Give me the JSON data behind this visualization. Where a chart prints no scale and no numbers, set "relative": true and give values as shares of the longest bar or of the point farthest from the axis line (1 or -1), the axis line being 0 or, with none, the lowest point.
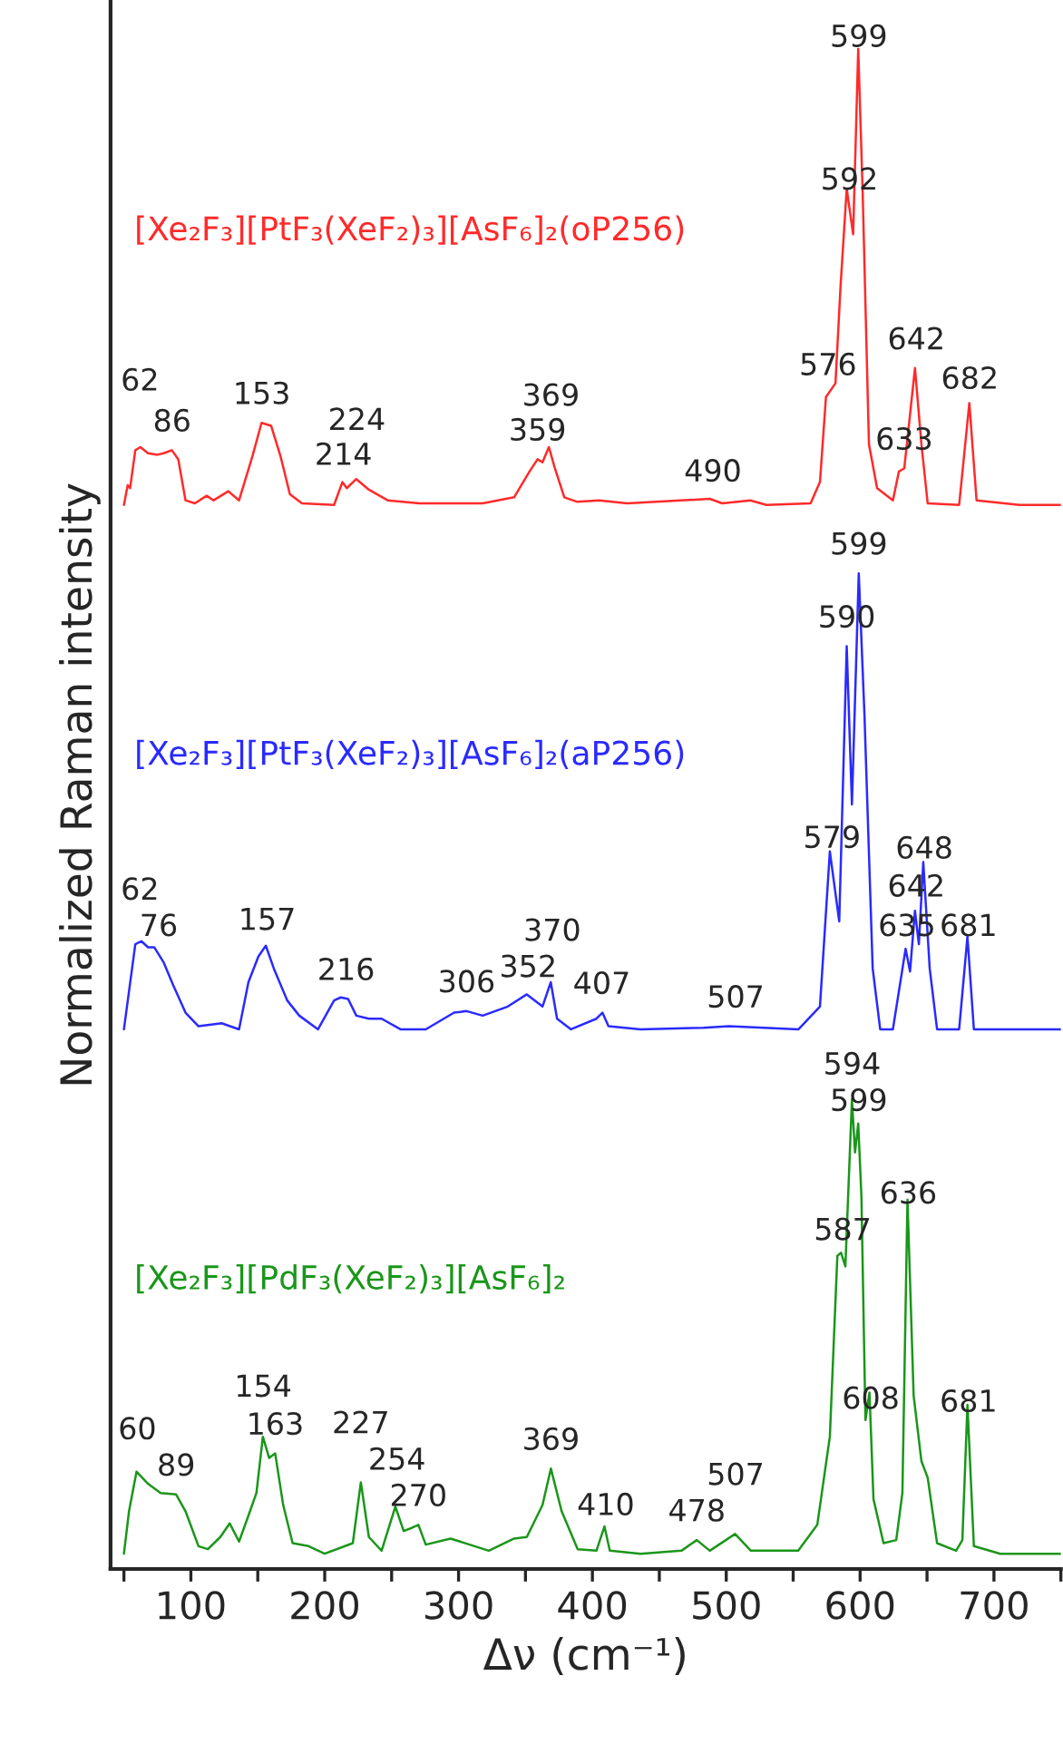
{
  "chart_data": {
    "type": "line",
    "relative": true,
    "xlabel": "Δν (cm⁻¹)",
    "ylabel": "Normalized Raman intensity",
    "xlim": [
      40,
      750
    ],
    "xticks": [
      {
        "value": 50,
        "label": null
      },
      100,
      {
        "value": 150,
        "label": null
      },
      200,
      {
        "value": 250,
        "label": null
      },
      300,
      {
        "value": 350,
        "label": null
      },
      400,
      {
        "value": 450,
        "label": null
      },
      500,
      {
        "value": 550,
        "label": null
      },
      600,
      {
        "value": 650,
        "label": null
      },
      700,
      {
        "value": 750,
        "label": null
      }
    ],
    "series": [
      {
        "name": "[Xe₂F₃][PtF₃(XeF₂)₃][AsF₆]₂(oP256)",
        "color": "#ff2a2a",
        "x": [
          50,
          52.8,
          54.6,
          58.5,
          62.3,
          68,
          75,
          79.7,
          85.8,
          90.6,
          96,
          103,
          111.8,
          117,
          128,
          136,
          146,
          152.8,
          160,
          167,
          174,
          183,
          207,
          213.2,
          216.5,
          223.6,
          233,
          247,
          270.8,
          318,
          341.5,
          353,
          359,
          362.7,
          367.5,
          372,
          379,
          388.7,
          405,
          426,
          487.7,
          497,
          518,
          530,
          563,
          570,
          574.5,
          581.6,
          585.4,
          590,
          594.8,
          598.6,
          601.9,
          606.6,
          612.7,
          624.5,
          629,
          633,
          641,
          645.8,
          650.5,
          674,
          681.6,
          687,
          719,
          750
        ],
        "values": [
          0.7,
          0.713,
          0.711,
          0.736,
          0.738,
          0.734,
          0.733,
          0.734,
          0.736,
          0.73,
          0.703,
          0.701,
          0.706,
          0.703,
          0.709,
          0.703,
          0.732,
          0.754,
          0.752,
          0.732,
          0.707,
          0.701,
          0.7,
          0.715,
          0.711,
          0.717,
          0.71,
          0.703,
          0.701,
          0.701,
          0.705,
          0.722,
          0.73,
          0.728,
          0.738,
          0.724,
          0.705,
          0.702,
          0.703,
          0.701,
          0.704,
          0.701,
          0.703,
          0.7,
          0.701,
          0.715,
          0.771,
          0.78,
          0.844,
          0.908,
          0.878,
          1.0,
          0.906,
          0.74,
          0.711,
          0.703,
          0.722,
          0.724,
          0.79,
          0.74,
          0.701,
          0.7,
          0.767,
          0.703,
          0.7,
          0.7
        ]
      },
      {
        "name": "[Xe₂F₃][PtF₃(XeF₂)₃][AsF₆]₂(aP256)",
        "color": "#2a2aff",
        "x": [
          50,
          58.5,
          63,
          68,
          72.6,
          79.7,
          86.8,
          96,
          105.7,
          123,
          136,
          143,
          150.5,
          156,
          162,
          172,
          181,
          195,
          207,
          212,
          217.5,
          223.6,
          233,
          242.5,
          256.6,
          275.5,
          296.7,
          306,
          318,
          336.8,
          351,
          362.7,
          368.9,
          373.6,
          384,
          403,
          407.5,
          412,
          436,
          483,
          502,
          554,
          570,
          577.4,
          584.4,
          590,
          593.9,
          599,
          603.3,
          609.4,
          615,
          624.5,
          634,
          637.3,
          641,
          643.9,
          647.2,
          652,
          657.5,
          674,
          680.2,
          685,
          750
        ],
        "values": [
          0.355,
          0.411,
          0.413,
          0.409,
          0.409,
          0.399,
          0.384,
          0.366,
          0.357,
          0.359,
          0.355,
          0.386,
          0.403,
          0.41,
          0.395,
          0.374,
          0.364,
          0.355,
          0.374,
          0.376,
          0.375,
          0.364,
          0.362,
          0.362,
          0.355,
          0.355,
          0.366,
          0.367,
          0.364,
          0.37,
          0.378,
          0.37,
          0.386,
          0.362,
          0.355,
          0.362,
          0.366,
          0.357,
          0.355,
          0.356,
          0.357,
          0.355,
          0.37,
          0.472,
          0.426,
          0.607,
          0.503,
          0.655,
          0.561,
          0.395,
          0.355,
          0.355,
          0.408,
          0.393,
          0.433,
          0.411,
          0.465,
          0.395,
          0.355,
          0.355,
          0.416,
          0.355,
          0.355
        ]
      },
      {
        "name": "[Xe₂F₃][PdF₃(XeF₂)₃][AsF₆]₂",
        "color": "#1a961a",
        "x": [
          50,
          53.8,
          59.4,
          68,
          77.4,
          89,
          96,
          105.7,
          112.7,
          122,
          129,
          136,
          143,
          149,
          153.8,
          158.5,
          163,
          169,
          176,
          188,
          200,
          221,
          227,
          233,
          242.5,
          252.8,
          259,
          265,
          270,
          275.5,
          294,
          322.6,
          341.5,
          351,
          362.7,
          369,
          377,
          389,
          403,
          409,
          413,
          436,
          466.5,
          478,
          487.7,
          506.6,
          518.4,
          553.8,
          568,
          577.4,
          583,
          585.8,
          589,
          593.9,
          596.2,
          598.6,
          601,
          604,
          607,
          610,
          617.5,
          627,
          631.6,
          635.4,
          640,
          645.8,
          650.5,
          657.5,
          671.7,
          676.4,
          680.2,
          685,
          704.7,
          750
        ],
        "values": [
          0.01,
          0.038,
          0.064,
          0.056,
          0.05,
          0.049,
          0.038,
          0.015,
          0.013,
          0.021,
          0.03,
          0.018,
          0.035,
          0.05,
          0.087,
          0.073,
          0.076,
          0.042,
          0.017,
          0.015,
          0.01,
          0.017,
          0.057,
          0.021,
          0.012,
          0.041,
          0.025,
          0.027,
          0.029,
          0.016,
          0.02,
          0.012,
          0.02,
          0.021,
          0.042,
          0.066,
          0.038,
          0.013,
          0.012,
          0.028,
          0.012,
          0.01,
          0.012,
          0.019,
          0.012,
          0.023,
          0.012,
          0.012,
          0.029,
          0.087,
          0.206,
          0.208,
          0.199,
          0.309,
          0.274,
          0.293,
          0.245,
          0.098,
          0.116,
          0.046,
          0.017,
          0.019,
          0.05,
          0.243,
          0.114,
          0.071,
          0.06,
          0.017,
          0.012,
          0.019,
          0.108,
          0.015,
          0.01,
          0.01
        ]
      }
    ],
    "annotations": [
      {
        "text": "62",
        "x": 62,
        "y": 0.738
      },
      {
        "text": "86",
        "x": 86,
        "y": 0.736
      },
      {
        "text": "153",
        "x": 153,
        "y": 0.754
      },
      {
        "text": "214",
        "x": 214,
        "y": 0.714
      },
      {
        "text": "224",
        "x": 224,
        "y": 0.717
      },
      {
        "text": "359",
        "x": 359,
        "y": 0.73
      },
      {
        "text": "369",
        "x": 369,
        "y": 0.733
      },
      {
        "text": "490",
        "x": 490,
        "y": 0.703
      },
      {
        "text": "576",
        "x": 576,
        "y": 0.773
      },
      {
        "text": "592",
        "x": 592,
        "y": 0.895
      },
      {
        "text": "599",
        "x": 599,
        "y": 0.989
      },
      {
        "text": "642",
        "x": 642,
        "y": 0.78
      },
      {
        "text": "633",
        "x": 633,
        "y": 0.724
      },
      {
        "text": "682",
        "x": 682,
        "y": 0.764
      },
      {
        "text": "62",
        "x": 62,
        "y": 0.413
      },
      {
        "text": "76",
        "x": 76,
        "y": 0.404
      },
      {
        "text": "157",
        "x": 157,
        "y": 0.408
      },
      {
        "text": "216",
        "x": 216,
        "y": 0.375
      },
      {
        "text": "306",
        "x": 306,
        "y": 0.367
      },
      {
        "text": "352",
        "x": 352,
        "y": 0.377
      },
      {
        "text": "370",
        "x": 370,
        "y": 0.381
      },
      {
        "text": "407",
        "x": 407,
        "y": 0.366
      },
      {
        "text": "507",
        "x": 507,
        "y": 0.357
      },
      {
        "text": "579",
        "x": 579,
        "y": 0.462
      },
      {
        "text": "590",
        "x": 590,
        "y": 0.607
      },
      {
        "text": "599",
        "x": 599,
        "y": 0.655
      },
      {
        "text": "648",
        "x": 648,
        "y": 0.455
      },
      {
        "text": "642",
        "x": 642,
        "y": 0.425
      },
      {
        "text": "635",
        "x": 635,
        "y": 0.404
      },
      {
        "text": "681",
        "x": 681,
        "y": 0.404
      },
      {
        "text": "60",
        "x": 60,
        "y": 0.063
      },
      {
        "text": "89",
        "x": 89,
        "y": 0.049
      },
      {
        "text": "154",
        "x": 154,
        "y": 0.086
      },
      {
        "text": "163",
        "x": 163,
        "y": 0.076
      },
      {
        "text": "227",
        "x": 227,
        "y": 0.057
      },
      {
        "text": "254",
        "x": 254,
        "y": 0.038
      },
      {
        "text": "270",
        "x": 270,
        "y": 0.029
      },
      {
        "text": "369",
        "x": 369,
        "y": 0.066
      },
      {
        "text": "410",
        "x": 410,
        "y": 0.023
      },
      {
        "text": "478",
        "x": 478,
        "y": 0.019
      },
      {
        "text": "507",
        "x": 507,
        "y": 0.023
      },
      {
        "text": "587",
        "x": 587,
        "y": 0.204
      },
      {
        "text": "594",
        "x": 594,
        "y": 0.308
      },
      {
        "text": "599",
        "x": 599,
        "y": 0.289
      },
      {
        "text": "608",
        "x": 608,
        "y": 0.093
      },
      {
        "text": "636",
        "x": 636,
        "y": 0.228
      },
      {
        "text": "681",
        "x": 681,
        "y": 0.091
      }
    ]
  }
}
